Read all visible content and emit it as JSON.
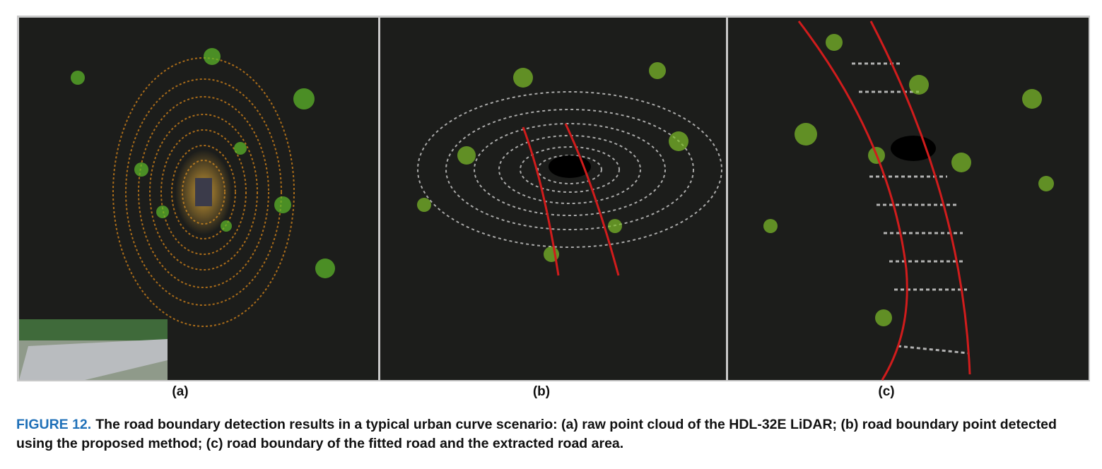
{
  "figure": {
    "panels": [
      {
        "label": "(a)"
      },
      {
        "label": "(b)"
      },
      {
        "label": "(c)"
      }
    ],
    "caption": {
      "label": "FIGURE 12.",
      "text": "The road boundary detection results in a typical urban curve scenario: (a) raw point cloud of the HDL-32E LiDAR; (b) road boundary point detected using the proposed method; (c) road boundary of the fitted road and the extracted road area."
    }
  }
}
